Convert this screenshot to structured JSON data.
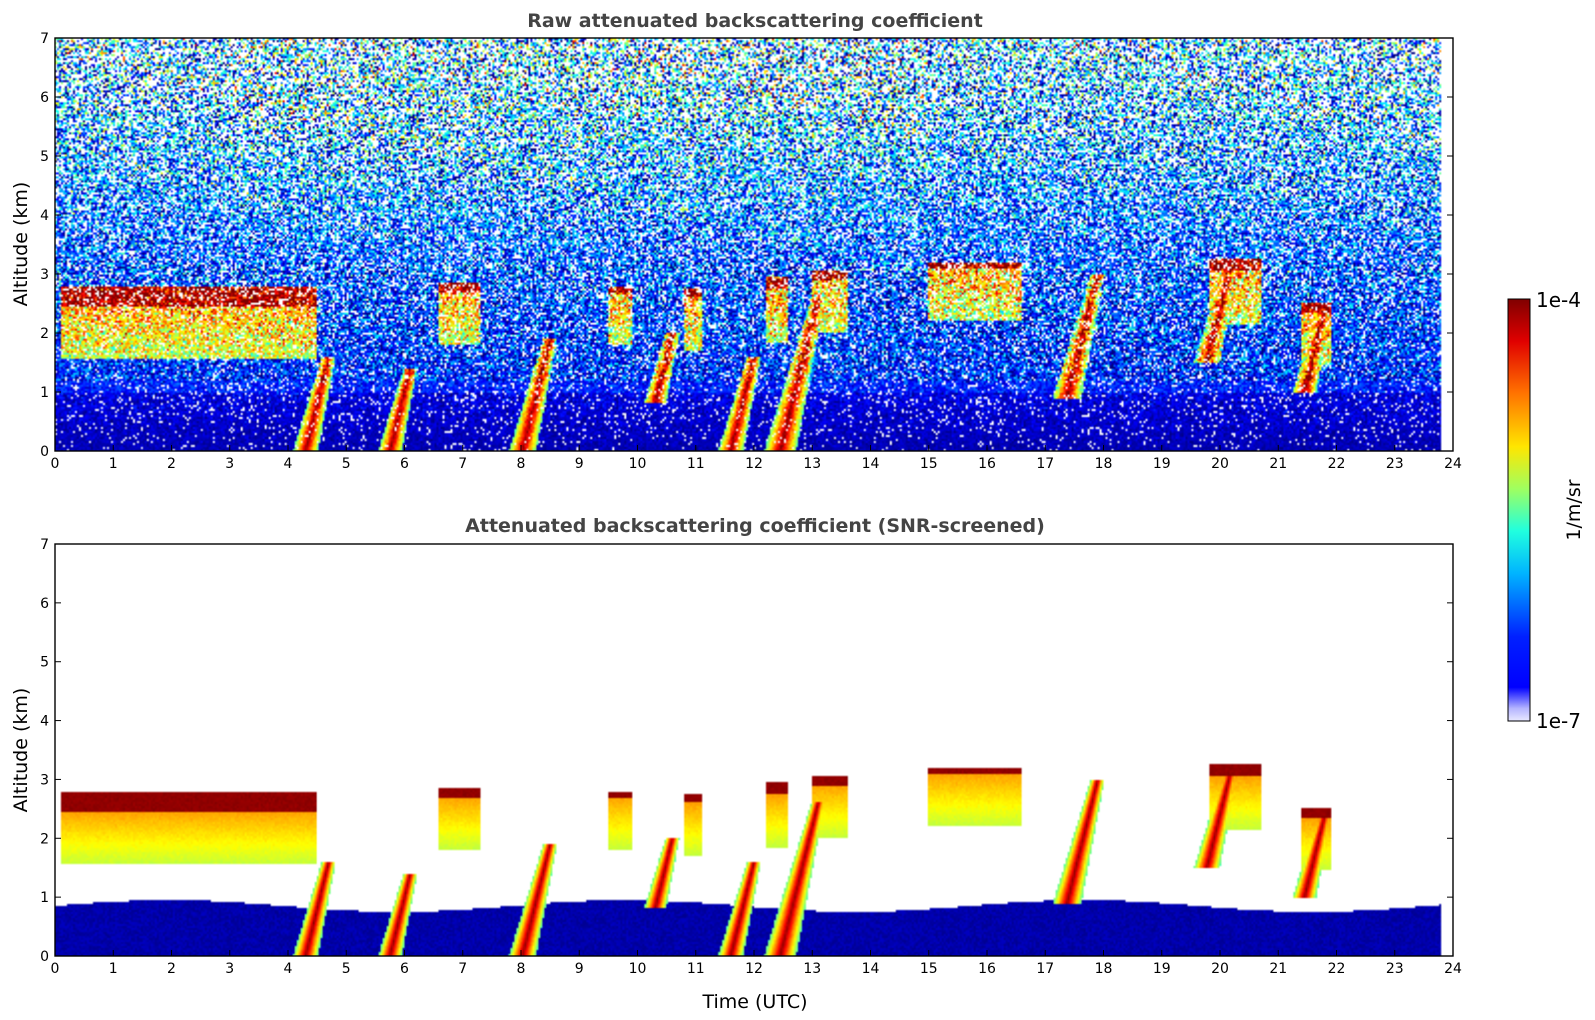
{
  "chart_data": [
    {
      "type": "heatmap",
      "title": "Raw attenuated backscattering coefficient",
      "xlabel": "",
      "ylabel": "Altitude (km)",
      "xlim": [
        0,
        24
      ],
      "ylim": [
        0,
        7
      ],
      "xticks": [
        0,
        1,
        2,
        3,
        4,
        5,
        6,
        7,
        8,
        9,
        10,
        11,
        12,
        13,
        14,
        15,
        16,
        17,
        18,
        19,
        20,
        21,
        22,
        23,
        24
      ],
      "yticks": [
        0,
        1,
        2,
        3,
        4,
        5,
        6,
        7
      ],
      "data_extent_hours": [
        0,
        23.8
      ],
      "scale": "log",
      "features": {
        "cloud_layers": [
          {
            "t0": 0.1,
            "t1": 4.5,
            "alt": [
              2.45,
              2.8
            ],
            "level": "max"
          },
          {
            "t0": 6.6,
            "t1": 7.3,
            "alt": [
              2.7,
              2.85
            ],
            "level": "max"
          },
          {
            "t0": 9.5,
            "t1": 9.9,
            "alt": [
              2.7,
              2.8
            ],
            "level": "max"
          },
          {
            "t0": 10.8,
            "t1": 11.1,
            "alt": [
              2.6,
              2.75
            ],
            "level": "max"
          },
          {
            "t0": 12.2,
            "t1": 12.6,
            "alt": [
              2.75,
              2.95
            ],
            "level": "max"
          },
          {
            "t0": 13.0,
            "t1": 13.6,
            "alt": [
              2.9,
              3.05
            ],
            "level": "max"
          },
          {
            "t0": 15.0,
            "t1": 16.6,
            "alt": [
              3.1,
              3.2
            ],
            "level": "max"
          },
          {
            "t0": 19.8,
            "t1": 20.7,
            "alt": [
              3.05,
              3.25
            ],
            "level": "max"
          },
          {
            "t0": 21.4,
            "t1": 21.9,
            "alt": [
              2.35,
              2.5
            ],
            "level": "max"
          }
        ],
        "precipitation_streaks": [
          {
            "t": 4.7,
            "alt": [
              0,
              1.6
            ]
          },
          {
            "t": 6.1,
            "alt": [
              0,
              1.4
            ]
          },
          {
            "t": 8.5,
            "alt": [
              0,
              1.9
            ]
          },
          {
            "t": 10.6,
            "alt": [
              0.8,
              2.0
            ]
          },
          {
            "t": 12.0,
            "alt": [
              0,
              1.6
            ]
          },
          {
            "t": 13.1,
            "alt": [
              0,
              2.6
            ]
          },
          {
            "t": 17.9,
            "alt": [
              0.9,
              3.0
            ]
          },
          {
            "t": 20.2,
            "alt": [
              1.5,
              3.2
            ]
          },
          {
            "t": 21.8,
            "alt": [
              1.0,
              2.4
            ]
          }
        ]
      }
    },
    {
      "type": "heatmap",
      "title": "Attenuated backscattering coefficient (SNR-screened)",
      "xlabel": "Time (UTC)",
      "ylabel": "Altitude (km)",
      "xlim": [
        0,
        24
      ],
      "ylim": [
        0,
        7
      ],
      "xticks": [
        0,
        1,
        2,
        3,
        4,
        5,
        6,
        7,
        8,
        9,
        10,
        11,
        12,
        13,
        14,
        15,
        16,
        17,
        18,
        19,
        20,
        21,
        22,
        23,
        24
      ],
      "yticks": [
        0,
        1,
        2,
        3,
        4,
        5,
        6,
        7
      ],
      "data_extent_hours": [
        0,
        23.8
      ],
      "scale": "log",
      "screened": true
    }
  ],
  "colorbar": {
    "label": "1/m/sr",
    "max_label": "1e-4",
    "min_label": "1e-7",
    "colormap": "jet",
    "scale": "log",
    "range": [
      1e-07,
      0.0001
    ]
  }
}
